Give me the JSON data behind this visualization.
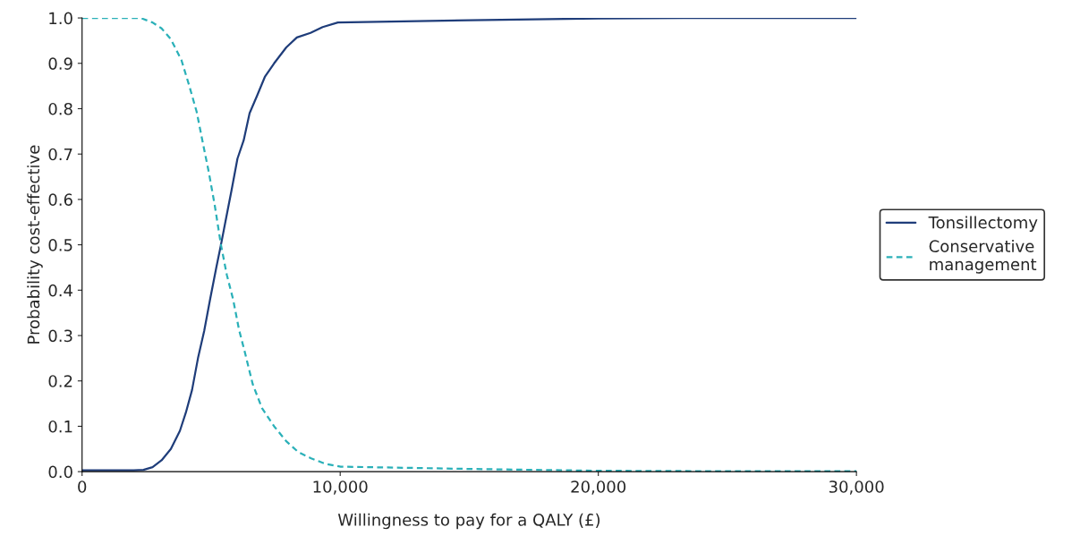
{
  "chart_data": {
    "type": "line",
    "xlabel": "Willingness to pay for a QALY (£)",
    "ylabel": "Probability cost-effective",
    "xlim": [
      0,
      30000
    ],
    "ylim": [
      0,
      1.0
    ],
    "xticks": [
      0,
      {
        "value": 10000,
        "label": "10,000"
      },
      {
        "value": 20000,
        "label": "20,000"
      },
      {
        "value": 30000,
        "label": "30,000"
      }
    ],
    "yticks": [
      {
        "value": 0,
        "label": "0.0"
      },
      0.1,
      0.2,
      0.3,
      0.4,
      0.5,
      0.6,
      0.7,
      0.8,
      0.9,
      {
        "value": 1.0,
        "label": "1.0"
      }
    ],
    "grid": false,
    "legend": "right",
    "series": [
      {
        "name": "Tonsillectomy",
        "color": "#1f3d7a",
        "line_style": "solid",
        "x": [
          0,
          2000,
          2380,
          2730,
          3080,
          3440,
          3790,
          4020,
          4260,
          4490,
          4730,
          4960,
          5200,
          5380,
          5550,
          5790,
          6020,
          6260,
          6490,
          6790,
          7080,
          7440,
          7910,
          8320,
          8850,
          9320,
          9910,
          15000,
          20000,
          25000,
          30000
        ],
        "values": [
          0.003,
          0.003,
          0.004,
          0.01,
          0.025,
          0.05,
          0.09,
          0.13,
          0.18,
          0.25,
          0.31,
          0.38,
          0.45,
          0.5,
          0.55,
          0.62,
          0.69,
          0.73,
          0.79,
          0.83,
          0.87,
          0.9,
          0.935,
          0.957,
          0.967,
          0.98,
          0.99,
          0.995,
          0.999,
          1.0,
          1.0
        ]
      },
      {
        "name": "Conservative\nmanagement",
        "color": "#2ab0b8",
        "line_style": "dashed",
        "x": [
          0,
          2260,
          2730,
          3080,
          3440,
          3850,
          4140,
          4440,
          4670,
          4910,
          5140,
          5380,
          5610,
          5850,
          6080,
          6320,
          6610,
          6970,
          7440,
          7910,
          8380,
          8850,
          9440,
          10020,
          15000,
          20000,
          25000,
          30000
        ],
        "values": [
          1.0,
          1.0,
          0.99,
          0.977,
          0.953,
          0.907,
          0.853,
          0.793,
          0.727,
          0.66,
          0.587,
          0.5,
          0.433,
          0.38,
          0.313,
          0.26,
          0.193,
          0.14,
          0.1,
          0.067,
          0.043,
          0.03,
          0.017,
          0.011,
          0.006,
          0.002,
          0.001,
          0.001
        ]
      }
    ]
  }
}
